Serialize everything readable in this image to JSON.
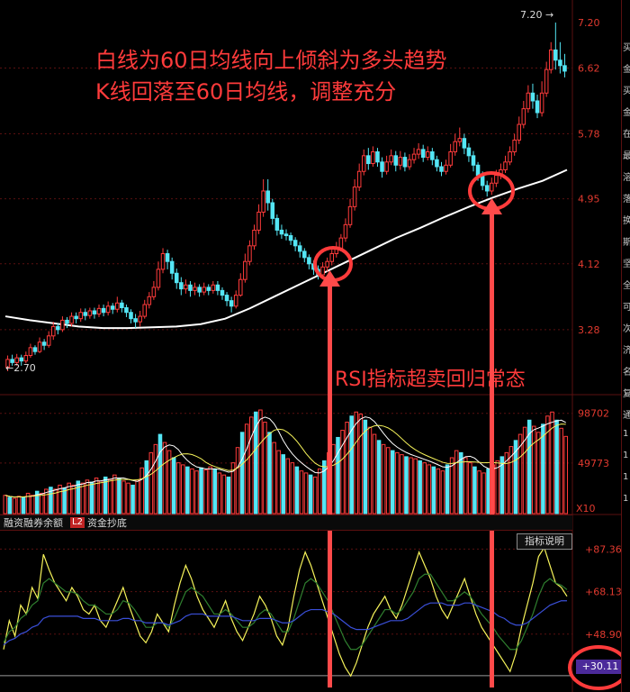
{
  "annotations": {
    "line1": "白线为60日均线向上倾斜为多头趋势",
    "line2": "K线回落至60日均线，调整充分",
    "line3": "RSI指标超卖回归常态"
  },
  "tabs": [
    {
      "label": "融资融券余额",
      "badge": ""
    },
    {
      "label": "资金抄底",
      "badge": "L2"
    }
  ],
  "indicator_button": "指标说明",
  "volume_multiplier": "X10",
  "current_badge": "+30.11",
  "side_chars": [
    "买",
    "金",
    "买",
    "金",
    "在",
    "最",
    "溶",
    "落",
    "换",
    "斯",
    "坚",
    "全",
    "可",
    "次",
    "济",
    "名",
    "复",
    "通",
    "1",
    "1",
    "1",
    "1"
  ],
  "colors": {
    "up": "#ff3b3b",
    "down": "#54e6f5",
    "ma60": "#ffffff",
    "grid": "#5a1010"
  },
  "chart_data": [
    {
      "type": "candlestick",
      "title": "",
      "y_ticks": [
        7.2,
        6.62,
        5.78,
        4.95,
        4.12,
        3.28
      ],
      "ylim": [
        2.45,
        7.35
      ],
      "high_label": "7.20",
      "low_label": "2.70",
      "ma_label": "60日均线",
      "ma60": [
        [
          0,
          3.45
        ],
        [
          8,
          3.4
        ],
        [
          16,
          3.36
        ],
        [
          24,
          3.32
        ],
        [
          32,
          3.3
        ],
        [
          40,
          3.3
        ],
        [
          48,
          3.31
        ],
        [
          56,
          3.32
        ],
        [
          64,
          3.35
        ],
        [
          72,
          3.42
        ],
        [
          80,
          3.55
        ],
        [
          88,
          3.7
        ],
        [
          96,
          3.85
        ],
        [
          104,
          4.0
        ],
        [
          112,
          4.15
        ],
        [
          120,
          4.3
        ],
        [
          128,
          4.45
        ],
        [
          136,
          4.58
        ],
        [
          144,
          4.72
        ],
        [
          152,
          4.85
        ],
        [
          160,
          4.97
        ],
        [
          168,
          5.08
        ],
        [
          176,
          5.18
        ],
        [
          184,
          5.32
        ]
      ],
      "candles": [
        [
          2.8,
          2.9,
          2.75,
          2.95
        ],
        [
          2.9,
          2.86,
          2.82,
          2.96
        ],
        [
          2.86,
          2.92,
          2.82,
          2.97
        ],
        [
          2.92,
          2.88,
          2.82,
          2.96
        ],
        [
          2.88,
          2.95,
          2.85,
          3.0
        ],
        [
          2.95,
          3.05,
          2.92,
          3.1
        ],
        [
          3.05,
          3.0,
          2.96,
          3.08
        ],
        [
          3.0,
          3.12,
          2.98,
          3.18
        ],
        [
          3.12,
          3.08,
          3.02,
          3.16
        ],
        [
          3.08,
          3.2,
          3.05,
          3.26
        ],
        [
          3.2,
          3.32,
          3.15,
          3.38
        ],
        [
          3.32,
          3.28,
          3.22,
          3.36
        ],
        [
          3.28,
          3.4,
          3.25,
          3.45
        ],
        [
          3.4,
          3.36,
          3.3,
          3.44
        ],
        [
          3.36,
          3.45,
          3.32,
          3.5
        ],
        [
          3.45,
          3.42,
          3.36,
          3.5
        ],
        [
          3.42,
          3.5,
          3.38,
          3.55
        ],
        [
          3.5,
          3.46,
          3.4,
          3.55
        ],
        [
          3.46,
          3.52,
          3.42,
          3.56
        ],
        [
          3.52,
          3.48,
          3.42,
          3.56
        ],
        [
          3.48,
          3.55,
          3.44,
          3.6
        ],
        [
          3.55,
          3.5,
          3.45,
          3.6
        ],
        [
          3.5,
          3.58,
          3.46,
          3.64
        ],
        [
          3.58,
          3.54,
          3.48,
          3.62
        ],
        [
          3.54,
          3.62,
          3.5,
          3.7
        ],
        [
          3.62,
          3.56,
          3.5,
          3.66
        ],
        [
          3.56,
          3.5,
          3.44,
          3.6
        ],
        [
          3.5,
          3.42,
          3.36,
          3.54
        ],
        [
          3.42,
          3.38,
          3.3,
          3.48
        ],
        [
          3.38,
          3.45,
          3.32,
          3.52
        ],
        [
          3.45,
          3.6,
          3.42,
          3.66
        ],
        [
          3.6,
          3.7,
          3.55,
          3.76
        ],
        [
          3.7,
          3.82,
          3.66,
          3.9
        ],
        [
          3.82,
          4.05,
          3.78,
          4.15
        ],
        [
          4.05,
          4.25,
          4.0,
          4.32
        ],
        [
          4.25,
          4.15,
          4.05,
          4.3
        ],
        [
          4.15,
          4.0,
          3.92,
          4.2
        ],
        [
          4.0,
          3.88,
          3.8,
          4.06
        ],
        [
          3.88,
          3.8,
          3.72,
          3.95
        ],
        [
          3.8,
          3.85,
          3.74,
          3.92
        ],
        [
          3.85,
          3.78,
          3.7,
          3.9
        ],
        [
          3.78,
          3.82,
          3.72,
          3.88
        ],
        [
          3.82,
          3.76,
          3.7,
          3.86
        ],
        [
          3.76,
          3.82,
          3.72,
          3.88
        ],
        [
          3.82,
          3.78,
          3.72,
          3.86
        ],
        [
          3.78,
          3.85,
          3.74,
          3.9
        ],
        [
          3.85,
          3.78,
          3.72,
          3.9
        ],
        [
          3.78,
          3.72,
          3.66,
          3.82
        ],
        [
          3.72,
          3.65,
          3.58,
          3.76
        ],
        [
          3.65,
          3.58,
          3.5,
          3.7
        ],
        [
          3.58,
          3.72,
          3.55,
          3.78
        ],
        [
          3.72,
          3.92,
          3.7,
          4.0
        ],
        [
          3.92,
          4.15,
          3.88,
          4.25
        ],
        [
          4.15,
          4.35,
          4.1,
          4.42
        ],
        [
          4.35,
          4.55,
          4.3,
          4.62
        ],
        [
          4.55,
          4.78,
          4.5,
          4.88
        ],
        [
          4.78,
          5.05,
          4.72,
          5.2
        ],
        [
          5.05,
          4.9,
          4.8,
          5.2
        ],
        [
          4.9,
          4.7,
          4.62,
          4.95
        ],
        [
          4.7,
          4.55,
          4.48,
          4.75
        ],
        [
          4.55,
          4.5,
          4.44,
          4.62
        ],
        [
          4.5,
          4.48,
          4.42,
          4.56
        ],
        [
          4.48,
          4.42,
          4.36,
          4.52
        ],
        [
          4.42,
          4.35,
          4.28,
          4.46
        ],
        [
          4.35,
          4.28,
          4.2,
          4.4
        ],
        [
          4.28,
          4.2,
          4.14,
          4.32
        ],
        [
          4.2,
          4.12,
          4.05,
          4.24
        ],
        [
          4.12,
          4.05,
          3.98,
          4.16
        ],
        [
          4.05,
          3.98,
          3.92,
          4.1
        ],
        [
          3.98,
          4.08,
          3.95,
          4.14
        ],
        [
          4.08,
          4.15,
          4.02,
          4.2
        ],
        [
          4.15,
          4.25,
          4.1,
          4.3
        ],
        [
          4.25,
          4.32,
          4.2,
          4.4
        ],
        [
          4.32,
          4.45,
          4.28,
          4.5
        ],
        [
          4.45,
          4.62,
          4.4,
          4.7
        ],
        [
          4.62,
          4.85,
          4.58,
          4.95
        ],
        [
          4.85,
          5.1,
          4.8,
          5.2
        ],
        [
          5.1,
          5.3,
          5.05,
          5.4
        ],
        [
          5.3,
          5.5,
          5.25,
          5.58
        ],
        [
          5.5,
          5.4,
          5.32,
          5.6
        ],
        [
          5.4,
          5.55,
          5.36,
          5.62
        ],
        [
          5.55,
          5.42,
          5.36,
          5.6
        ],
        [
          5.42,
          5.3,
          5.22,
          5.48
        ],
        [
          5.3,
          5.42,
          5.26,
          5.5
        ],
        [
          5.42,
          5.5,
          5.38,
          5.58
        ],
        [
          5.5,
          5.38,
          5.3,
          5.56
        ],
        [
          5.38,
          5.48,
          5.32,
          5.56
        ],
        [
          5.48,
          5.36,
          5.3,
          5.54
        ],
        [
          5.36,
          5.45,
          5.32,
          5.52
        ],
        [
          5.45,
          5.52,
          5.4,
          5.6
        ],
        [
          5.52,
          5.58,
          5.46,
          5.66
        ],
        [
          5.58,
          5.48,
          5.42,
          5.64
        ],
        [
          5.48,
          5.55,
          5.44,
          5.62
        ],
        [
          5.55,
          5.45,
          5.38,
          5.6
        ],
        [
          5.45,
          5.36,
          5.3,
          5.5
        ],
        [
          5.36,
          5.3,
          5.24,
          5.42
        ],
        [
          5.3,
          5.38,
          5.26,
          5.45
        ],
        [
          5.38,
          5.55,
          5.35,
          5.65
        ],
        [
          5.55,
          5.68,
          5.5,
          5.78
        ],
        [
          5.68,
          5.72,
          5.62,
          5.86
        ],
        [
          5.72,
          5.6,
          5.52,
          5.78
        ],
        [
          5.6,
          5.5,
          5.42,
          5.66
        ],
        [
          5.5,
          5.38,
          5.3,
          5.56
        ],
        [
          5.38,
          5.25,
          5.18,
          5.42
        ],
        [
          5.25,
          5.12,
          5.06,
          5.3
        ],
        [
          5.12,
          5.05,
          4.98,
          5.18
        ],
        [
          5.05,
          5.15,
          5.0,
          5.22
        ],
        [
          5.15,
          5.25,
          5.1,
          5.32
        ],
        [
          5.25,
          5.32,
          5.2,
          5.4
        ],
        [
          5.32,
          5.42,
          5.28,
          5.5
        ],
        [
          5.42,
          5.55,
          5.38,
          5.62
        ],
        [
          5.55,
          5.7,
          5.5,
          5.78
        ],
        [
          5.7,
          5.9,
          5.65,
          6.0
        ],
        [
          5.9,
          6.1,
          5.85,
          6.2
        ],
        [
          6.1,
          6.3,
          6.05,
          6.4
        ],
        [
          6.3,
          6.2,
          6.1,
          6.42
        ],
        [
          6.2,
          6.05,
          5.98,
          6.28
        ],
        [
          6.05,
          6.3,
          6.0,
          6.45
        ],
        [
          6.3,
          6.6,
          6.25,
          6.7
        ],
        [
          6.6,
          6.85,
          6.55,
          6.95
        ],
        [
          6.85,
          6.72,
          6.6,
          7.2
        ],
        [
          6.72,
          6.65,
          6.55,
          6.95
        ],
        [
          6.65,
          6.58,
          6.5,
          6.8
        ]
      ]
    },
    {
      "type": "bar",
      "title": "",
      "y_ticks": [
        98702,
        49773
      ],
      "ylim": [
        0,
        110000
      ],
      "multiplier_label": "X10",
      "volumes": [
        18,
        16,
        15,
        17,
        16,
        20,
        18,
        22,
        20,
        24,
        26,
        24,
        28,
        25,
        30,
        28,
        32,
        30,
        33,
        31,
        35,
        32,
        36,
        34,
        38,
        35,
        32,
        30,
        28,
        33,
        45,
        52,
        60,
        68,
        78,
        70,
        62,
        55,
        50,
        48,
        46,
        44,
        42,
        45,
        43,
        46,
        44,
        40,
        38,
        36,
        50,
        65,
        80,
        88,
        95,
        100,
        102,
        90,
        80,
        70,
        62,
        58,
        54,
        50,
        46,
        42,
        40,
        38,
        36,
        44,
        52,
        60,
        68,
        75,
        82,
        90,
        96,
        100,
        98,
        92,
        85,
        78,
        72,
        68,
        65,
        62,
        60,
        58,
        56,
        55,
        54,
        52,
        50,
        48,
        46,
        44,
        42,
        48,
        55,
        62,
        60,
        55,
        50,
        46,
        42,
        40,
        44,
        48,
        52,
        56,
        60,
        66,
        72,
        78,
        85,
        92,
        86,
        80,
        88,
        96,
        100,
        92,
        84,
        76
      ]
    },
    {
      "type": "line",
      "title": "",
      "y_ticks": [
        87.36,
        68.13,
        48.9,
        30.11
      ],
      "ylim": [
        26,
        92
      ],
      "series": [
        {
          "name": "",
          "color": "#f6f35a",
          "values": [
            42,
            55,
            48,
            62,
            58,
            70,
            65,
            85,
            78,
            72,
            68,
            64,
            70,
            66,
            60,
            58,
            62,
            55,
            52,
            58,
            64,
            70,
            62,
            55,
            48,
            45,
            50,
            58,
            54,
            50,
            62,
            72,
            80,
            74,
            66,
            60,
            56,
            52,
            58,
            64,
            56,
            50,
            46,
            52,
            58,
            66,
            62,
            56,
            48,
            44,
            52,
            66,
            78,
            86,
            80,
            72,
            64,
            56,
            48,
            40,
            34,
            30,
            36,
            44,
            52,
            58,
            62,
            66,
            60,
            56,
            62,
            70,
            78,
            86,
            80,
            74,
            66,
            60,
            56,
            62,
            68,
            74,
            66,
            58,
            52,
            48,
            44,
            40,
            36,
            32,
            40,
            52,
            62,
            72,
            84,
            88,
            80,
            72,
            70,
            66
          ]
        },
        {
          "name": "",
          "color": "#2f7f2f",
          "values": [
            45,
            50,
            52,
            56,
            58,
            62,
            64,
            72,
            74,
            72,
            70,
            68,
            68,
            67,
            64,
            62,
            62,
            60,
            58,
            58,
            60,
            64,
            63,
            60,
            56,
            52,
            52,
            54,
            54,
            52,
            56,
            62,
            68,
            70,
            68,
            66,
            62,
            58,
            58,
            60,
            58,
            55,
            52,
            52,
            54,
            58,
            60,
            58,
            54,
            50,
            50,
            56,
            64,
            72,
            74,
            72,
            68,
            64,
            58,
            52,
            46,
            42,
            42,
            44,
            48,
            52,
            56,
            60,
            60,
            58,
            60,
            64,
            68,
            74,
            76,
            76,
            72,
            68,
            64,
            64,
            66,
            68,
            66,
            62,
            58,
            55,
            52,
            48,
            45,
            42,
            42,
            46,
            52,
            58,
            66,
            72,
            74,
            72,
            71,
            69
          ]
        },
        {
          "name": "",
          "color": "#3a4fd8",
          "values": [
            44,
            46,
            47,
            49,
            50,
            52,
            53,
            56,
            57,
            57,
            57,
            57,
            57,
            57,
            56,
            56,
            56,
            55,
            55,
            55,
            55,
            56,
            56,
            55,
            55,
            54,
            54,
            54,
            54,
            53,
            54,
            55,
            57,
            58,
            58,
            58,
            57,
            57,
            57,
            57,
            57,
            56,
            55,
            55,
            55,
            56,
            56,
            56,
            55,
            54,
            54,
            55,
            57,
            59,
            60,
            60,
            60,
            59,
            58,
            56,
            54,
            52,
            51,
            51,
            51,
            52,
            53,
            54,
            55,
            55,
            55,
            56,
            58,
            60,
            62,
            63,
            63,
            63,
            62,
            62,
            62,
            63,
            63,
            62,
            61,
            60,
            59,
            57,
            56,
            54,
            53,
            53,
            54,
            56,
            58,
            60,
            62,
            63,
            64,
            64
          ]
        }
      ]
    }
  ]
}
